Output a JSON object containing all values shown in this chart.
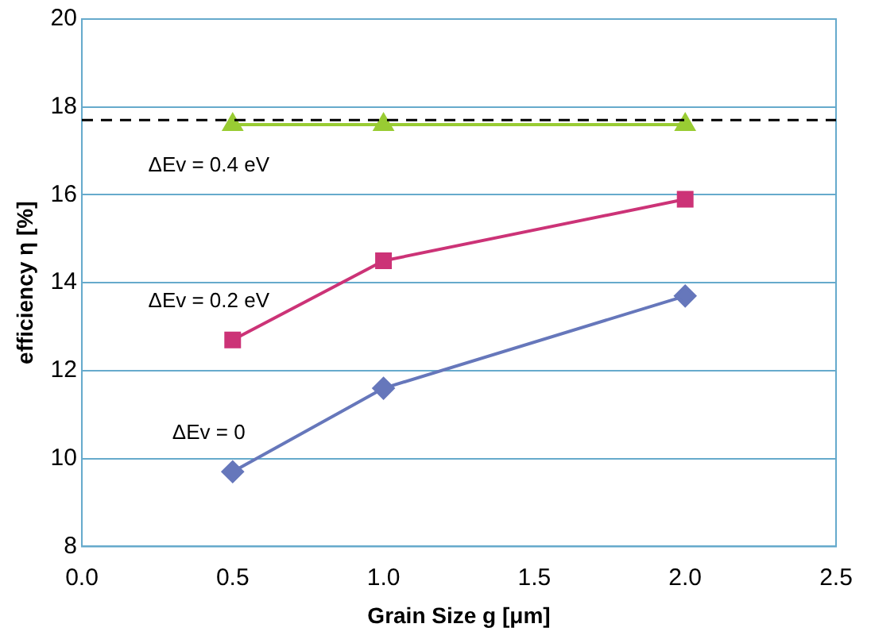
{
  "chart_data": {
    "type": "line",
    "xlabel": "Grain Size g [μm]",
    "ylabel": "efficiency η [%]",
    "xlim": [
      0,
      2.5
    ],
    "xticks": [
      {
        "value": 0,
        "label": "0.0"
      },
      {
        "value": 0.5,
        "label": "0.5"
      },
      {
        "value": 1,
        "label": "1.0"
      },
      {
        "value": 1.5,
        "label": "1.5"
      },
      {
        "value": 2,
        "label": "2.0"
      },
      {
        "value": 2.5,
        "label": "2.5"
      }
    ],
    "ylim": [
      8,
      20
    ],
    "yticks": [
      8,
      10,
      12,
      14,
      16,
      18,
      20
    ],
    "grid": "y",
    "legend": false,
    "x": [
      0.5,
      1,
      2
    ],
    "series": [
      {
        "name": "ΔEv = 0.4 eV",
        "color": "#99cc33",
        "marker": "triangle",
        "values": [
          17.6,
          17.6,
          17.6
        ]
      },
      {
        "name": "ΔEv = 0.2 eV",
        "color": "#cc3377",
        "marker": "square",
        "values": [
          12.7,
          14.5,
          15.9
        ]
      },
      {
        "name": "ΔEv = 0",
        "color": "#6677bb",
        "marker": "diamond",
        "values": [
          9.7,
          11.6,
          13.7
        ]
      }
    ],
    "ref_lines": [
      {
        "axis": "y",
        "value": 17.7,
        "color": "#000000",
        "line_style": "dashed"
      }
    ]
  }
}
